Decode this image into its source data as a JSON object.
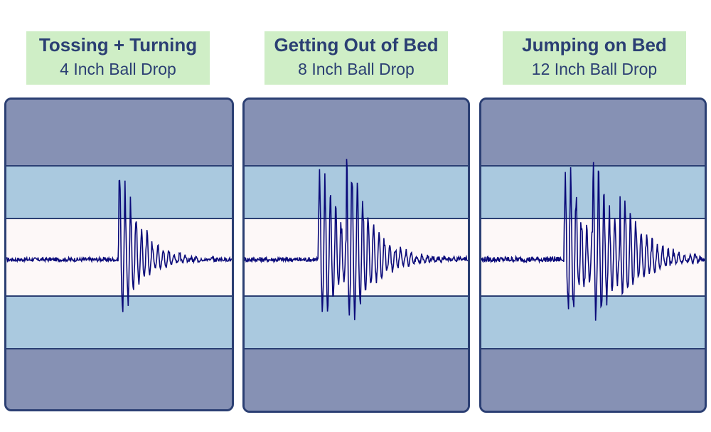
{
  "chart_data": [
    {
      "type": "line",
      "title": "Tossing + Turning",
      "subtitle": "4 Inch Ball Drop",
      "ylim": [
        -100,
        100
      ],
      "impacts": [
        {
          "t": 0.497,
          "amp": 1.0,
          "decay": 0.09
        }
      ],
      "noise": 0.05
    },
    {
      "type": "line",
      "title": "Getting Out of Bed",
      "subtitle": "8 Inch Ball Drop",
      "ylim": [
        -100,
        100
      ],
      "impacts": [
        {
          "t": 0.33,
          "amp": 1.05,
          "decay": 0.1
        },
        {
          "t": 0.455,
          "amp": 0.9,
          "decay": 0.1
        }
      ],
      "noise": 0.06
    },
    {
      "type": "line",
      "title": "Jumping on Bed",
      "subtitle": "12 Inch Ball Drop",
      "ylim": [
        -100,
        100
      ],
      "impacts": [
        {
          "t": 0.37,
          "amp": 1.0,
          "decay": 0.1
        },
        {
          "t": 0.5,
          "amp": 0.95,
          "decay": 0.1
        },
        {
          "t": 0.62,
          "amp": 0.45,
          "decay": 0.12
        }
      ],
      "noise": 0.07
    }
  ],
  "colors": {
    "label_bg": "#cfeec6",
    "label_text": "#2b3f73",
    "outer_band": "#8691b4",
    "inner_band": "#aac9df",
    "center_band": "#fdf8f8",
    "line": "#0b0b7a"
  }
}
